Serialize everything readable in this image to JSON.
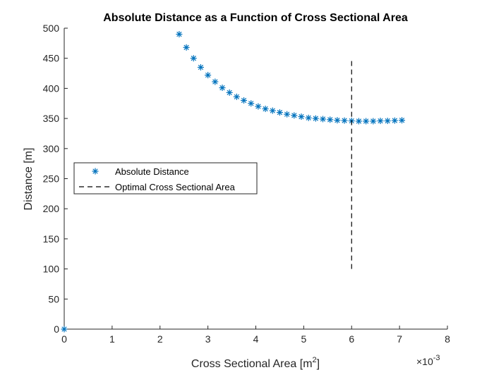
{
  "chart_data": {
    "type": "scatter",
    "title": "Absolute Distance as a Function of Cross Sectional Area",
    "xlabel": "Cross Sectional Area [m",
    "xlabel_superscript": "2",
    "xlabel_suffix": "]",
    "ylabel": "Distance [m]",
    "x_exponent_base": "×10",
    "x_exponent_power": "-3",
    "xlim": [
      0,
      8
    ],
    "ylim": [
      0,
      500
    ],
    "xticks": [
      "0",
      "1",
      "2",
      "3",
      "4",
      "5",
      "6",
      "7",
      "8"
    ],
    "yticks": [
      "0",
      "50",
      "100",
      "150",
      "200",
      "250",
      "300",
      "350",
      "400",
      "450",
      "500"
    ],
    "grid": false,
    "legend_position": "middle-left",
    "series": [
      {
        "name": "Absolute Distance",
        "marker": "asterisk",
        "color": "#0072BD",
        "points": [
          [
            0.0,
            0
          ],
          [
            2.4,
            490
          ],
          [
            2.55,
            468
          ],
          [
            2.7,
            450
          ],
          [
            2.85,
            435
          ],
          [
            3.0,
            422
          ],
          [
            3.15,
            411
          ],
          [
            3.3,
            401
          ],
          [
            3.45,
            393
          ],
          [
            3.6,
            386
          ],
          [
            3.75,
            380
          ],
          [
            3.9,
            375
          ],
          [
            4.05,
            370
          ],
          [
            4.2,
            366
          ],
          [
            4.35,
            363
          ],
          [
            4.5,
            360
          ],
          [
            4.65,
            357
          ],
          [
            4.8,
            355
          ],
          [
            4.95,
            353
          ],
          [
            5.1,
            351
          ],
          [
            5.25,
            350
          ],
          [
            5.4,
            349
          ],
          [
            5.55,
            348
          ],
          [
            5.7,
            347
          ],
          [
            5.85,
            346.5
          ],
          [
            6.0,
            346
          ],
          [
            6.15,
            345.5
          ],
          [
            6.3,
            345.5
          ],
          [
            6.45,
            345.5
          ],
          [
            6.6,
            346
          ],
          [
            6.75,
            346
          ],
          [
            6.9,
            346.5
          ],
          [
            7.05,
            347
          ]
        ]
      },
      {
        "name": "Optimal Cross Sectional Area",
        "style": "dashed",
        "color": "#000000",
        "points": [
          [
            6.0,
            100
          ],
          [
            6.0,
            450
          ]
        ]
      }
    ]
  }
}
